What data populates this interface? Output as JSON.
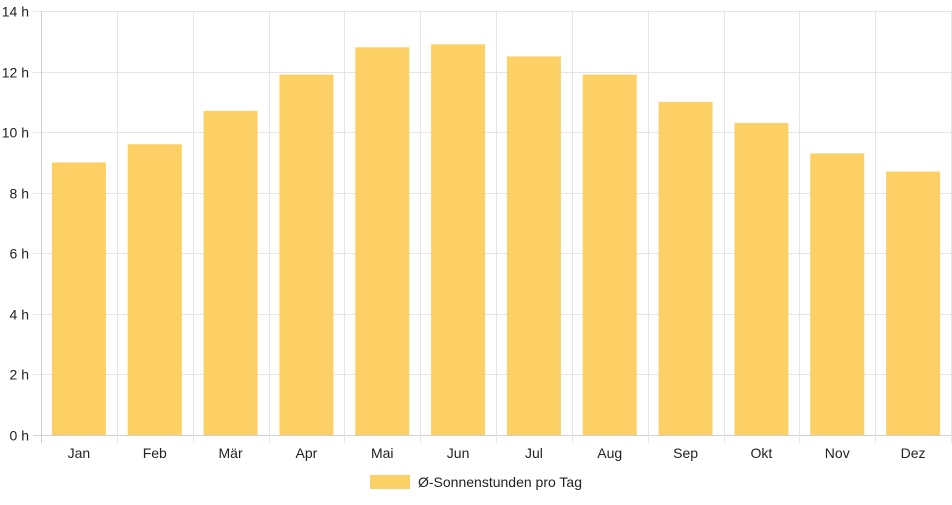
{
  "chart_data": {
    "type": "bar",
    "categories": [
      "Jan",
      "Feb",
      "Mär",
      "Apr",
      "Mai",
      "Jun",
      "Jul",
      "Aug",
      "Sep",
      "Okt",
      "Nov",
      "Dez"
    ],
    "series": [
      {
        "name": "Ø-Sonnenstunden pro Tag",
        "color": "#fdd066",
        "values": [
          9.0,
          9.6,
          10.7,
          11.9,
          12.8,
          12.9,
          12.5,
          11.9,
          11.0,
          10.3,
          9.3,
          8.7
        ]
      }
    ],
    "y_ticks": [
      0,
      2,
      4,
      6,
      8,
      10,
      12,
      14
    ],
    "y_unit": " h",
    "ylim": [
      0,
      14
    ],
    "grid": true,
    "legend_position": "bottom"
  }
}
